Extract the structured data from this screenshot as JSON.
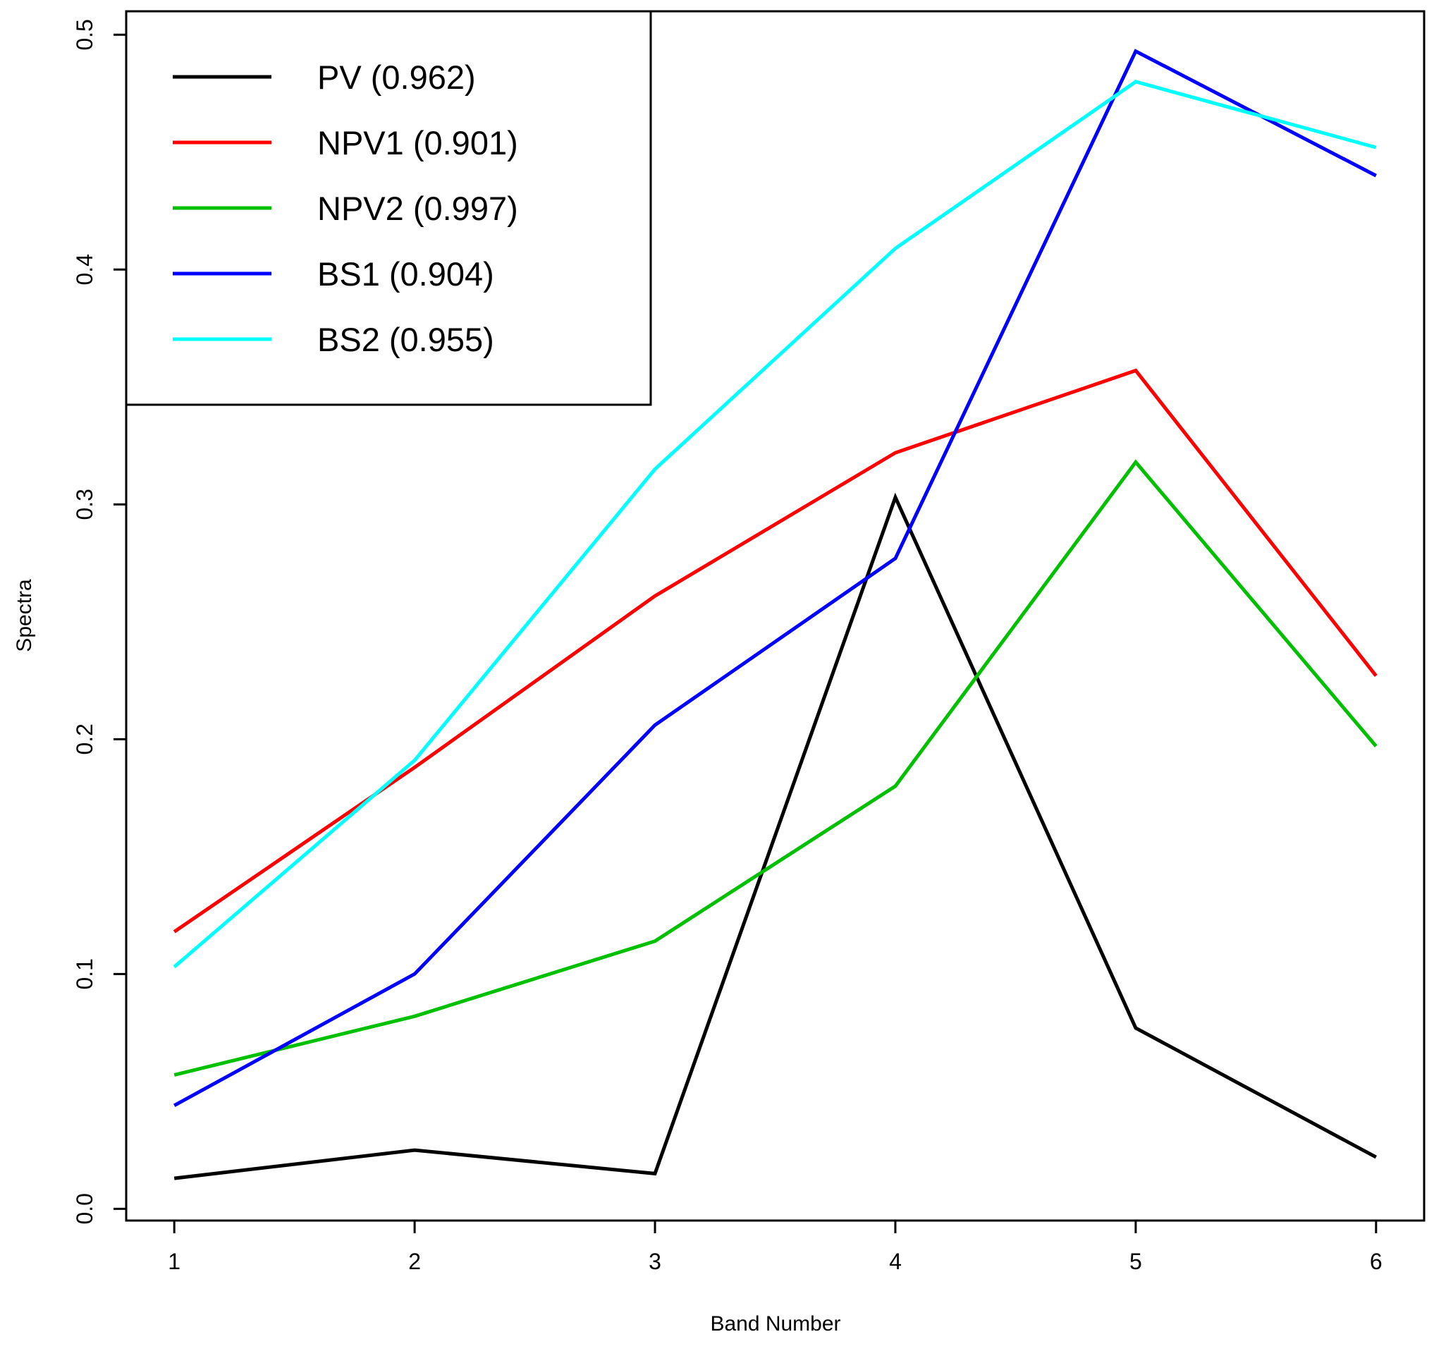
{
  "chart_data": {
    "type": "line",
    "title": "",
    "xlabel": "Band Number",
    "ylabel": "Spectra",
    "x": [
      1,
      2,
      3,
      4,
      5,
      6
    ],
    "x_tick_labels": [
      "1",
      "2",
      "3",
      "4",
      "5",
      "6"
    ],
    "y_ticks": [
      0.0,
      0.1,
      0.2,
      0.3,
      0.4,
      0.5
    ],
    "y_tick_labels": [
      "0.0",
      "0.1",
      "0.2",
      "0.3",
      "0.4",
      "0.5"
    ],
    "xlim": [
      0.8,
      6.2
    ],
    "ylim": [
      -0.005,
      0.51
    ],
    "grid": false,
    "legend_position": "top-left",
    "series": [
      {
        "name": "PV",
        "legend_label": "PV (0.962)",
        "color": "#000000",
        "values": [
          0.013,
          0.025,
          0.015,
          0.303,
          0.077,
          0.022
        ]
      },
      {
        "name": "NPV1",
        "legend_label": "NPV1 (0.901)",
        "color": "#ff0000",
        "values": [
          0.118,
          0.188,
          0.261,
          0.322,
          0.357,
          0.227
        ]
      },
      {
        "name": "NPV2",
        "legend_label": "NPV2 (0.997)",
        "color": "#00c000",
        "values": [
          0.057,
          0.082,
          0.114,
          0.18,
          0.318,
          0.197
        ]
      },
      {
        "name": "BS1",
        "legend_label": "BS1 (0.904)",
        "color": "#0000ff",
        "values": [
          0.044,
          0.1,
          0.206,
          0.277,
          0.493,
          0.44
        ]
      },
      {
        "name": "BS2",
        "legend_label": "BS2 (0.955)",
        "color": "#00ffff",
        "values": [
          0.103,
          0.191,
          0.315,
          0.409,
          0.48,
          0.452
        ]
      }
    ]
  }
}
